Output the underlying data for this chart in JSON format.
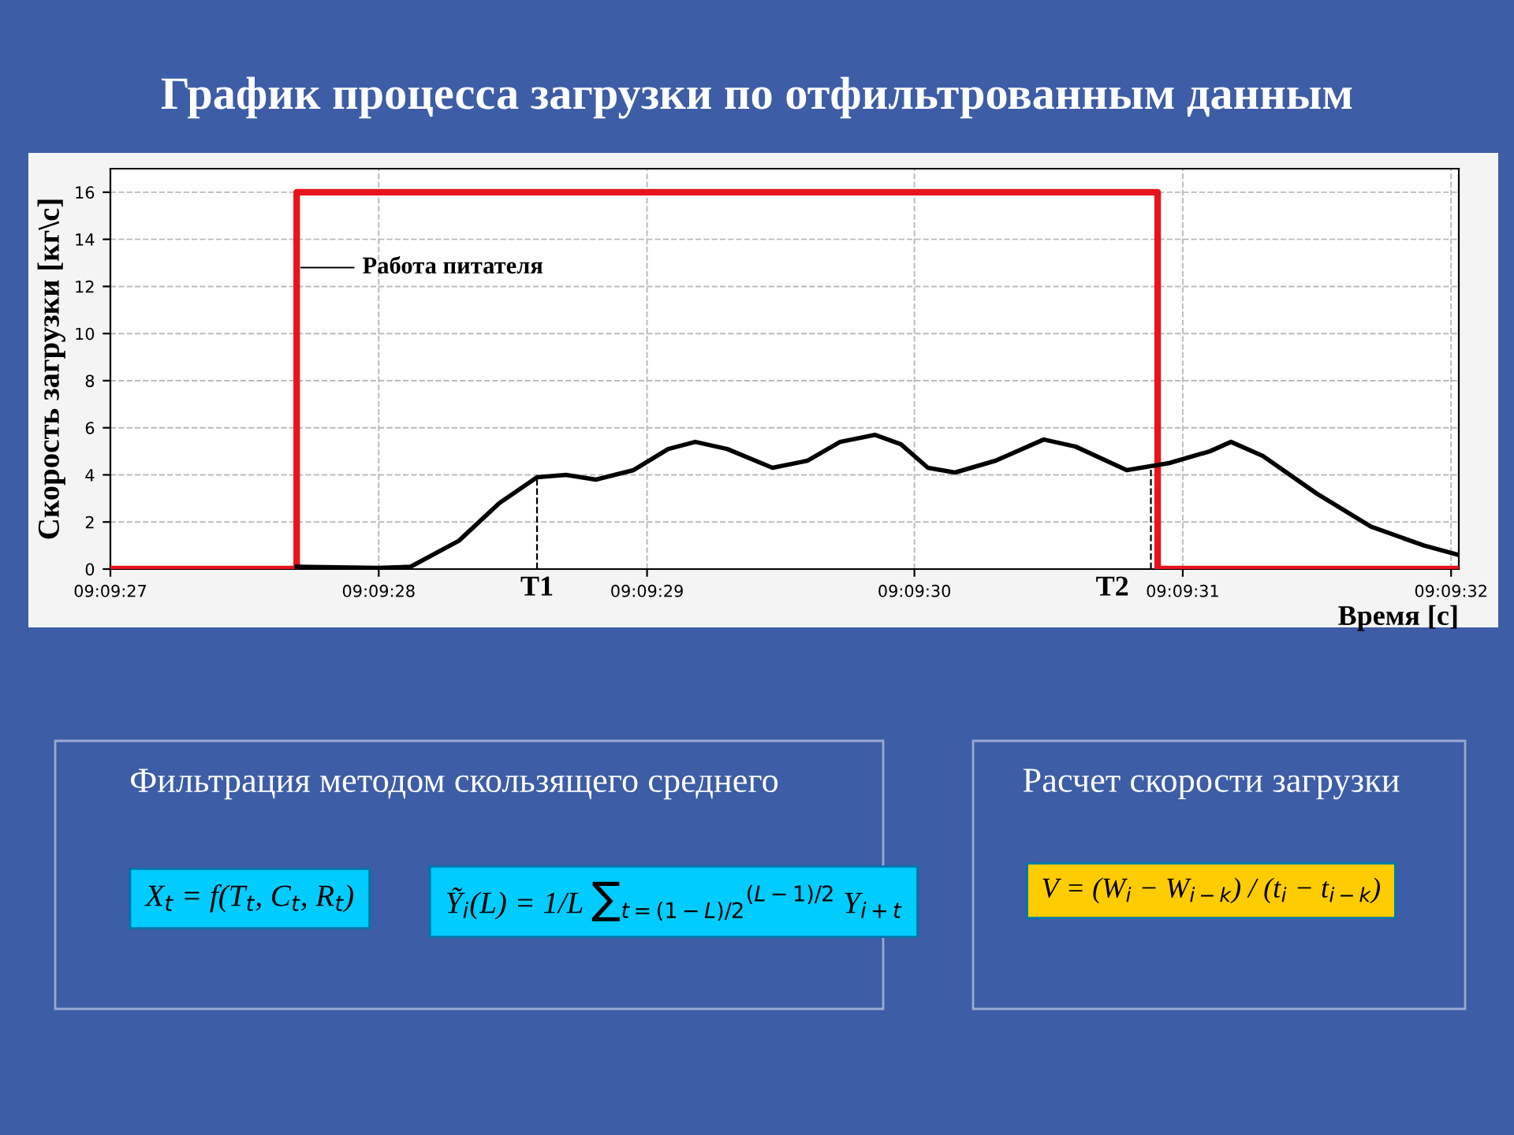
{
  "chart_data": {
    "type": "line",
    "title": "График процесса загрузки по отфильтрованным данным",
    "xlabel": "Время [с]",
    "ylabel": "Скорость загрузки [кг\\с]",
    "xlim": [
      9.1575,
      9.158897
    ],
    "ylim": [
      0,
      17
    ],
    "xticks": [
      {
        "value": 9.1575,
        "label": "09:09:27"
      },
      {
        "value": 9.157778,
        "label": "09:09:28"
      },
      {
        "value": 9.158056,
        "label": "09:09:29"
      },
      {
        "value": 9.158333,
        "label": "09:09:30"
      },
      {
        "value": 9.158611,
        "label": "09:09:31"
      },
      {
        "value": 9.158889,
        "label": "09:09:32"
      }
    ],
    "yticks": [
      0,
      2,
      4,
      6,
      8,
      10,
      12,
      14,
      16
    ],
    "grid": true,
    "line_style": "solid",
    "marker": "none",
    "series": [
      {
        "color": "#e8141b",
        "x": [
          9.1575,
          9.157693,
          9.157693,
          9.158585,
          9.158585,
          9.158897
        ],
        "values": [
          0,
          0,
          16,
          16,
          0,
          0
        ]
      },
      {
        "color": "#000000",
        "x": [
          9.157693,
          9.157778,
          9.157811,
          9.157861,
          9.157903,
          9.157942,
          9.157972,
          9.158003,
          9.158042,
          9.158078,
          9.158106,
          9.158139,
          9.158186,
          9.158222,
          9.158256,
          9.158292,
          9.158319,
          9.158347,
          9.158375,
          9.158417,
          9.158467,
          9.1585,
          9.158553,
          9.158597,
          9.158639,
          9.158661,
          9.158694,
          9.15875,
          9.158806,
          9.158861,
          9.158897
        ],
        "values": [
          0.1,
          0.05,
          0.1,
          1.2,
          2.8,
          3.9,
          4.0,
          3.8,
          4.2,
          5.1,
          5.4,
          5.1,
          4.3,
          4.6,
          5.4,
          5.7,
          5.3,
          4.3,
          4.1,
          4.6,
          5.5,
          5.2,
          4.2,
          4.5,
          5.0,
          5.4,
          4.8,
          3.2,
          1.8,
          1.0,
          0.6
        ]
      }
    ],
    "ref_lines": [
      {
        "axis": "x",
        "value": 9.157942,
        "label": "T1",
        "line_style": "dashed",
        "color": "#000000"
      },
      {
        "axis": "x",
        "value": 9.158578,
        "label": "T2",
        "line_style": "dashed",
        "color": "#000000"
      }
    ],
    "annotations": [
      {
        "text": "Работа питателя",
        "x": 9.157693,
        "y": 12.8
      },
      "Фильтрация методом скользящего среднего",
      "X$_{t}$ = f(T$_{t}$, C$_{t}$, R$_{t}$)",
      "Ỹ$_{i}$(L) = 1/L ∑$_{t=(1−L)/2}$$^{(L−1)/2}$ Y$_{i+t}$",
      "Расчет скорости загрузки",
      "V = (W$_{i}$ − W$_{i−k}$) / (t$_{i}$ − t$_{i−k}$)"
    ]
  }
}
